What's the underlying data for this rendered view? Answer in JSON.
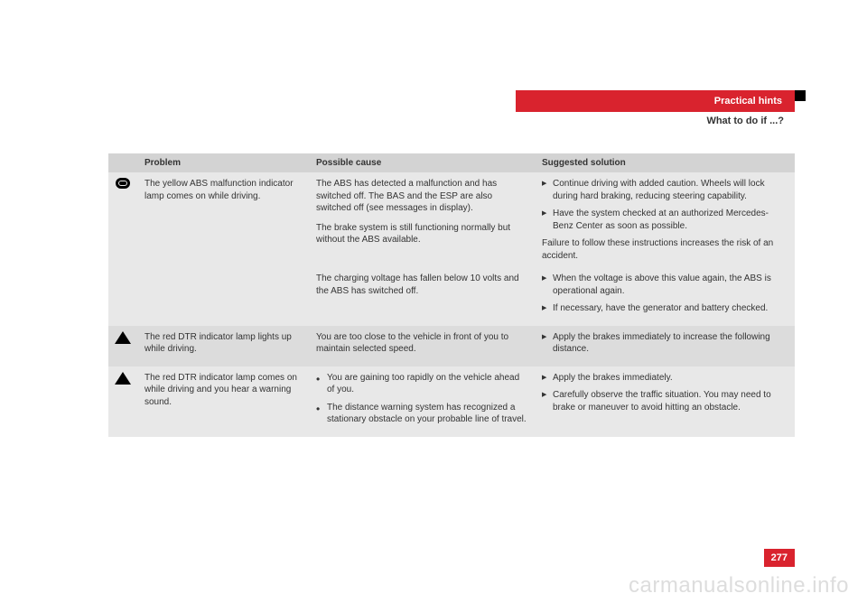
{
  "header": {
    "section_title": "Practical hints",
    "subtitle": "What to do if ...?",
    "bg_color": "#d9232e",
    "text_color": "#ffffff"
  },
  "table": {
    "headers": {
      "problem": "Problem",
      "cause": "Possible cause",
      "solution": "Suggested solution"
    },
    "rows": [
      {
        "icon": "abs-icon",
        "bg": "#e8e8e8",
        "problem": "The yellow ABS malfunction indicator lamp comes on while driving.",
        "subrows": [
          {
            "cause_paras": [
              "The ABS has detected a malfunction and has switched off. The BAS and the ESP are also switched off (see messages in display).",
              "The brake system is still functioning normally but without the ABS available."
            ],
            "solutions": [
              "Continue driving with added caution. Wheels will lock during hard braking, reducing steering capability.",
              "Have the system checked at an authorized Mercedes-Benz Center as soon as possible."
            ],
            "solution_footer": "Failure to follow these instructions increases the risk of an accident."
          },
          {
            "cause_paras": [
              "The charging voltage has fallen below 10 volts and the ABS has switched off."
            ],
            "solutions": [
              "When the voltage is above this value again, the ABS is operational again.",
              "If necessary, have the generator and battery checked."
            ]
          }
        ]
      },
      {
        "icon": "warning-triangle-icon",
        "bg": "#dcdcdc",
        "problem": "The red DTR indicator lamp lights up while driving.",
        "cause_plain": "You are too close to the vehicle in front of you to maintain selected speed.",
        "solutions": [
          "Apply the brakes immediately to increase the following distance."
        ]
      },
      {
        "icon": "warning-triangle-icon",
        "bg": "#e8e8e8",
        "problem": "The red DTR indicator lamp comes on while driving and you hear a warning sound.",
        "cause_bullets": [
          "You are gaining too rapidly on the vehicle ahead of you.",
          "The distance warning system has recognized a stationary obstacle on your probable line of travel."
        ],
        "solutions": [
          "Apply the brakes immediately.",
          "Carefully observe the traffic situation. You may need to brake or maneuver to avoid hitting an obstacle."
        ]
      }
    ]
  },
  "page_number": "277",
  "watermark": "carmanualsonline.info",
  "colors": {
    "accent": "#d9232e",
    "header_row_bg": "#d3d3d3",
    "row_bg": "#e8e8e8",
    "row_alt_bg": "#dcdcdc"
  }
}
